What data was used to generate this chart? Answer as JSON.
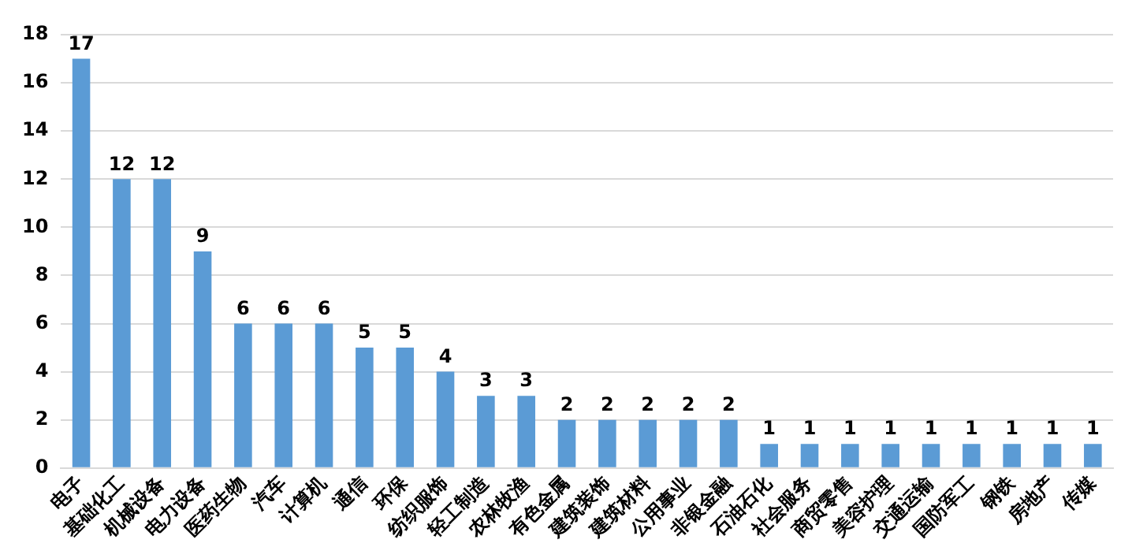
{
  "chart_data": {
    "type": "bar",
    "categories": [
      "电子",
      "基础化工",
      "机械设备",
      "电力设备",
      "医药生物",
      "汽车",
      "计算机",
      "通信",
      "环保",
      "纺织服饰",
      "轻工制造",
      "农林牧渔",
      "有色金属",
      "建筑装饰",
      "建筑材料",
      "公用事业",
      "非银金融",
      "石油石化",
      "社会服务",
      "商贸零售",
      "美容护理",
      "交通运输",
      "国防军工",
      "钢铁",
      "房地产",
      "传媒"
    ],
    "values": [
      17,
      12,
      12,
      9,
      6,
      6,
      6,
      5,
      5,
      4,
      3,
      3,
      2,
      2,
      2,
      2,
      2,
      1,
      1,
      1,
      1,
      1,
      1,
      1,
      1,
      1
    ],
    "color": "#5b9bd5",
    "ylim": [
      0,
      18
    ],
    "yticks": [
      0,
      2,
      4,
      6,
      8,
      10,
      12,
      14,
      16,
      18
    ],
    "grid": "y",
    "data_labels": true
  }
}
